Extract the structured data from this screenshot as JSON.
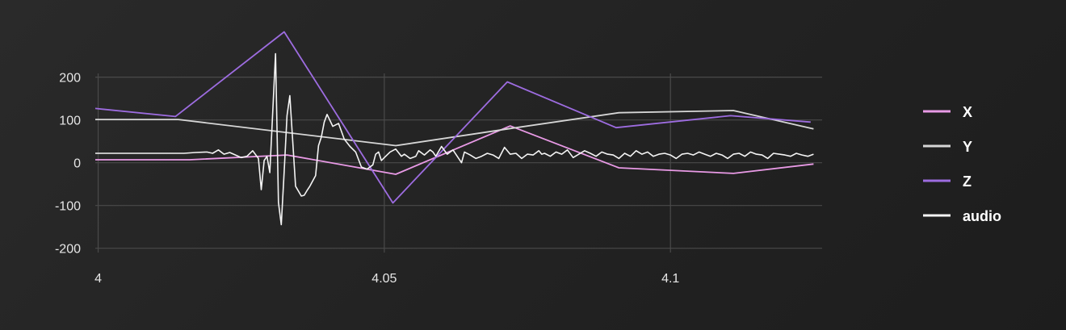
{
  "chart_data": {
    "type": "line",
    "title": "",
    "xlabel": "",
    "ylabel": "",
    "xlim": [
      3.9995,
      4.1265
    ],
    "ylim": [
      -210,
      305
    ],
    "x_ticks": [
      4,
      4.05,
      4.1
    ],
    "x_tick_labels": [
      "4",
      "4.05",
      "4.1"
    ],
    "y_ticks": [
      200,
      100,
      0,
      -100,
      -200
    ],
    "y_tick_labels": [
      "200",
      "100",
      "0",
      "-100",
      "-200"
    ],
    "grid": true,
    "legend_position": "right",
    "series": [
      {
        "name": "X",
        "color": "#e99ae6",
        "x": [
          3.9995,
          4.016,
          4.033,
          4.052,
          4.072,
          4.091,
          4.111,
          4.125
        ],
        "values": [
          7,
          7,
          18,
          -27,
          86,
          -12,
          -25,
          -3
        ]
      },
      {
        "name": "Y",
        "color": "#d6d6d6",
        "x": [
          3.9995,
          4.014,
          4.052,
          4.072,
          4.091,
          4.111,
          4.125
        ],
        "values": [
          101,
          101,
          40,
          80,
          117,
          122,
          79
        ]
      },
      {
        "name": "Z",
        "color": "#9d6ce0",
        "x": [
          3.9995,
          4.0135,
          4.0325,
          4.0515,
          4.0715,
          4.0905,
          4.1105,
          4.1245
        ],
        "values": [
          127,
          108,
          306,
          -94,
          189,
          82,
          110,
          95
        ]
      },
      {
        "name": "audio",
        "color": "#f4f4f4",
        "x": [
          3.9995,
          4.015,
          4.017,
          4.019,
          4.02,
          4.021,
          4.022,
          4.023,
          4.024,
          4.025,
          4.026,
          4.027,
          4.028,
          4.0285,
          4.029,
          4.0295,
          4.03,
          4.031,
          4.0315,
          4.032,
          4.0325,
          4.033,
          4.0335,
          4.0345,
          4.0355,
          4.036,
          4.0365,
          4.037,
          4.038,
          4.0385,
          4.039,
          4.0395,
          4.04,
          4.041,
          4.042,
          4.043,
          4.044,
          4.045,
          4.046,
          4.047,
          4.048,
          4.0485,
          4.049,
          4.0495,
          4.05,
          4.051,
          4.052,
          4.053,
          4.0535,
          4.0545,
          4.0555,
          4.056,
          4.057,
          4.058,
          4.0585,
          4.059,
          4.06,
          4.061,
          4.062,
          4.063,
          4.0635,
          4.064,
          4.065,
          4.066,
          4.067,
          4.068,
          4.069,
          4.07,
          4.071,
          4.072,
          4.073,
          4.074,
          4.075,
          4.076,
          4.077,
          4.0775,
          4.078,
          4.079,
          4.08,
          4.081,
          4.082,
          4.083,
          4.084,
          4.085,
          4.086,
          4.087,
          4.088,
          4.089,
          4.09,
          4.091,
          4.092,
          4.093,
          4.094,
          4.095,
          4.096,
          4.097,
          4.098,
          4.099,
          4.1,
          4.101,
          4.102,
          4.103,
          4.104,
          4.105,
          4.106,
          4.107,
          4.108,
          4.109,
          4.11,
          4.111,
          4.112,
          4.113,
          4.114,
          4.115,
          4.116,
          4.117,
          4.118,
          4.119,
          4.12,
          4.121,
          4.122,
          4.1225,
          4.123,
          4.124,
          4.125
        ],
        "values": [
          22,
          22,
          24,
          25,
          22,
          30,
          20,
          24,
          18,
          12,
          15,
          28,
          10,
          -63,
          5,
          15,
          -23,
          255,
          -93,
          -145,
          -20,
          110,
          157,
          -55,
          -78,
          -76,
          -65,
          -55,
          -30,
          40,
          60,
          95,
          113,
          85,
          92,
          55,
          38,
          25,
          -10,
          -15,
          -5,
          20,
          25,
          5,
          12,
          25,
          32,
          15,
          20,
          10,
          15,
          28,
          18,
          30,
          25,
          15,
          38,
          20,
          30,
          10,
          0,
          25,
          18,
          10,
          15,
          22,
          18,
          10,
          36,
          20,
          22,
          10,
          20,
          18,
          28,
          20,
          22,
          15,
          25,
          20,
          30,
          12,
          20,
          28,
          22,
          15,
          25,
          20,
          18,
          10,
          22,
          15,
          28,
          20,
          25,
          15,
          20,
          22,
          18,
          10,
          20,
          22,
          18,
          25,
          20,
          15,
          22,
          18,
          10,
          20,
          22,
          15,
          25,
          20,
          18,
          10,
          22,
          20,
          18,
          15,
          22,
          20,
          18,
          15,
          20
        ]
      }
    ]
  }
}
